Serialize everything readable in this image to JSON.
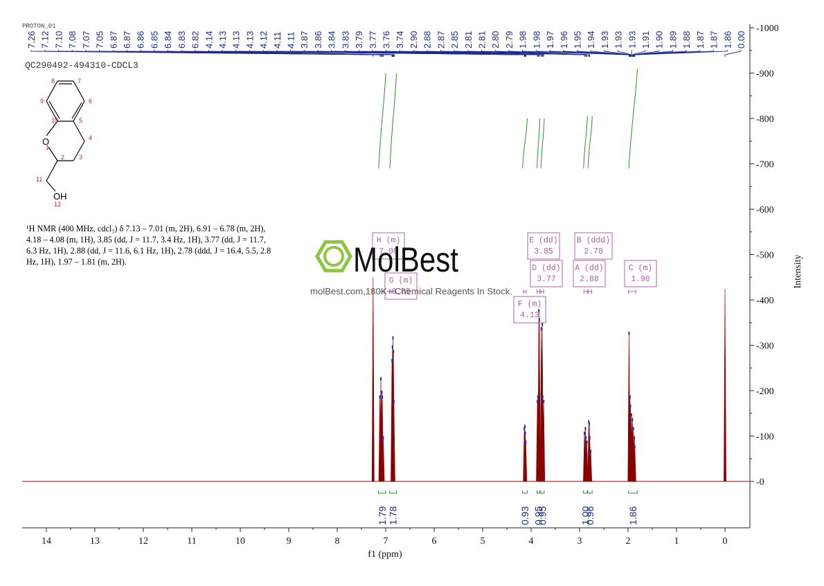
{
  "header": {
    "label_small": "PROTON_01",
    "sample_id": "QC290492-494310-CDCL3"
  },
  "description": "¹H NMR (400 MHz, cdcl₃) δ 7.13 – 7.01 (m, 2H), 6.91 – 6.78 (m, 2H), 4.18 – 4.08 (m, 1H), 3.85 (dd, J = 11.7, 3.4 Hz, 1H), 3.77 (dd, J = 11.7, 6.3 Hz, 1H), 2.88 (dd, J = 11.6, 6.1 Hz, 1H), 2.78 (ddd, J = 16.4, 5.5, 2.8 Hz, 1H), 1.97 – 1.81 (m, 2H).",
  "watermark": {
    "brand": "MolBest",
    "tagline": "molBest.com,180K+ Chemical Reagents In Stock."
  },
  "structure": {
    "atom_numbers": [
      "1",
      "2",
      "3",
      "4",
      "5",
      "6",
      "7",
      "8",
      "9",
      "10",
      "11",
      "12"
    ],
    "heteroatoms": [
      "O",
      "OH"
    ]
  },
  "colors": {
    "spectrum": "#8b0000",
    "peak_labels": "#1f2a8a",
    "integrals": "#2e8b2e",
    "multiplet_boxes": "#b060b0",
    "atom_numbers": "#cc2222"
  },
  "chart_data": {
    "type": "line",
    "title": "",
    "xlabel": "f1 (ppm)",
    "ylabel": "Intensity",
    "xlim": [
      14.5,
      -0.5
    ],
    "ylim": [
      -100,
      1000
    ],
    "x_ticks": [
      "14",
      "13",
      "12",
      "11",
      "10",
      "9",
      "8",
      "7",
      "6",
      "5",
      "4",
      "3",
      "2",
      "1",
      "0"
    ],
    "y_ticks": [
      "0",
      "100",
      "200",
      "300",
      "400",
      "500",
      "600",
      "700",
      "800",
      "900",
      "1000"
    ],
    "peak_labels": [
      "7.26",
      "7.12",
      "7.10",
      "7.08",
      "7.07",
      "7.05",
      "6.87",
      "6.87",
      "6.86",
      "6.85",
      "6.84",
      "6.83",
      "6.82",
      "4.14",
      "4.13",
      "4.13",
      "4.13",
      "4.12",
      "4.11",
      "4.11",
      "3.87",
      "3.86",
      "3.84",
      "3.83",
      "3.79",
      "3.77",
      "3.76",
      "3.74",
      "2.90",
      "2.88",
      "2.87",
      "2.85",
      "2.81",
      "2.81",
      "2.80",
      "2.79",
      "1.98",
      "1.98",
      "1.97",
      "1.96",
      "1.95",
      "1.94",
      "1.93",
      "1.93",
      "1.93",
      "1.91",
      "1.90",
      "1.89",
      "1.88",
      "1.87",
      "1.87",
      "1.86",
      "0.00"
    ],
    "peaks": [
      {
        "ppm": 7.26,
        "height": 450
      },
      {
        "ppm": 7.12,
        "height": 190
      },
      {
        "ppm": 7.1,
        "height": 230
      },
      {
        "ppm": 7.08,
        "height": 200
      },
      {
        "ppm": 7.07,
        "height": 190
      },
      {
        "ppm": 7.05,
        "height": 100
      },
      {
        "ppm": 6.87,
        "height": 270
      },
      {
        "ppm": 6.86,
        "height": 300
      },
      {
        "ppm": 6.85,
        "height": 320
      },
      {
        "ppm": 6.84,
        "height": 290
      },
      {
        "ppm": 6.83,
        "height": 180
      },
      {
        "ppm": 4.14,
        "height": 120
      },
      {
        "ppm": 4.13,
        "height": 125
      },
      {
        "ppm": 4.12,
        "height": 110
      },
      {
        "ppm": 4.11,
        "height": 90
      },
      {
        "ppm": 3.87,
        "height": 180
      },
      {
        "ppm": 3.86,
        "height": 190
      },
      {
        "ppm": 3.84,
        "height": 380
      },
      {
        "ppm": 3.83,
        "height": 360
      },
      {
        "ppm": 3.79,
        "height": 340
      },
      {
        "ppm": 3.77,
        "height": 350
      },
      {
        "ppm": 3.76,
        "height": 190
      },
      {
        "ppm": 3.74,
        "height": 180
      },
      {
        "ppm": 2.9,
        "height": 110
      },
      {
        "ppm": 2.88,
        "height": 120
      },
      {
        "ppm": 2.87,
        "height": 100
      },
      {
        "ppm": 2.85,
        "height": 90
      },
      {
        "ppm": 2.81,
        "height": 135
      },
      {
        "ppm": 2.8,
        "height": 130
      },
      {
        "ppm": 2.79,
        "height": 100
      },
      {
        "ppm": 2.77,
        "height": 70
      },
      {
        "ppm": 1.98,
        "height": 330
      },
      {
        "ppm": 1.96,
        "height": 190
      },
      {
        "ppm": 1.95,
        "height": 170
      },
      {
        "ppm": 1.93,
        "height": 150
      },
      {
        "ppm": 1.91,
        "height": 140
      },
      {
        "ppm": 1.89,
        "height": 120
      },
      {
        "ppm": 1.87,
        "height": 100
      },
      {
        "ppm": 1.86,
        "height": 80
      },
      {
        "ppm": 0.0,
        "height": 425
      }
    ],
    "multiplets": [
      {
        "label": "H (m)",
        "value": "7.08",
        "range": [
          7.12,
          7.04
        ]
      },
      {
        "label": "G (m)",
        "value": "6.85",
        "range": [
          6.89,
          6.8
        ]
      },
      {
        "label": "E (dd)",
        "value": "3.85",
        "range": [
          3.88,
          3.82
        ]
      },
      {
        "label": "D (dd)",
        "value": "3.77",
        "range": [
          3.8,
          3.74
        ]
      },
      {
        "label": "F (m)",
        "value": "4.13",
        "range": [
          4.16,
          4.1
        ]
      },
      {
        "label": "B (ddd)",
        "value": "2.78",
        "range": [
          2.82,
          2.75
        ]
      },
      {
        "label": "A (dd)",
        "value": "2.88",
        "range": [
          2.91,
          2.84
        ]
      },
      {
        "label": "C (m)",
        "value": "1.90",
        "range": [
          1.99,
          1.84
        ]
      }
    ],
    "integrals": [
      {
        "value": "1.79",
        "range": [
          7.15,
          7.0
        ],
        "y_start": 690,
        "y_end": 900
      },
      {
        "value": "1.78",
        "range": [
          6.92,
          6.78
        ],
        "y_start": 690,
        "y_end": 900
      },
      {
        "value": "0.93",
        "range": [
          4.18,
          4.08
        ],
        "y_start": 690,
        "y_end": 800
      },
      {
        "value": "0.95",
        "range": [
          3.88,
          3.82
        ],
        "y_start": 690,
        "y_end": 800
      },
      {
        "value": "0.95",
        "range": [
          3.8,
          3.73
        ],
        "y_start": 690,
        "y_end": 800
      },
      {
        "value": "1.00",
        "range": [
          2.92,
          2.84
        ],
        "y_start": 690,
        "y_end": 805
      },
      {
        "value": "0.96",
        "range": [
          2.83,
          2.74
        ],
        "y_start": 690,
        "y_end": 805
      },
      {
        "value": "1.86",
        "range": [
          1.99,
          1.81
        ],
        "y_start": 690,
        "y_end": 910
      }
    ]
  }
}
